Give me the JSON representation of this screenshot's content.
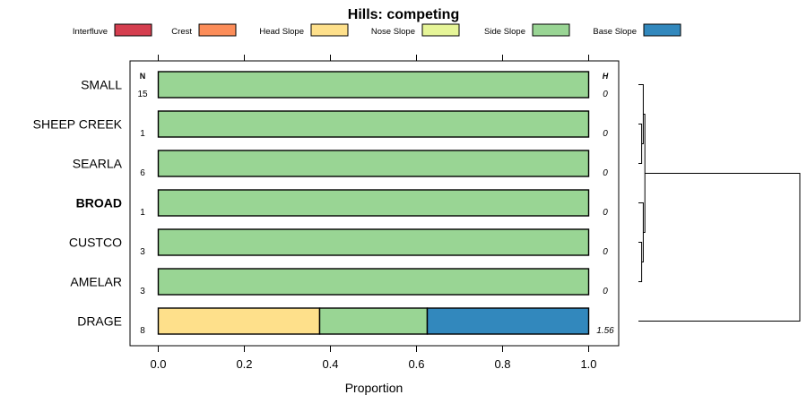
{
  "chart_data": {
    "type": "stacked-bar-horizontal",
    "title": "Hills: competing",
    "xlabel": "Proportion",
    "xlim": [
      -0.05,
      1.05
    ],
    "xticks": [
      0.0,
      0.2,
      0.4,
      0.6,
      0.8,
      1.0
    ],
    "xtick_labels": [
      "0.0",
      "0.2",
      "0.4",
      "0.6",
      "0.8",
      "1.0"
    ],
    "n_header": "N",
    "h_header": "H",
    "legend": [
      {
        "name": "Interfluve",
        "color": "#d53e4f"
      },
      {
        "name": "Crest",
        "color": "#fc8d59"
      },
      {
        "name": "Head Slope",
        "color": "#fee08b"
      },
      {
        "name": "Nose Slope",
        "color": "#e6f598"
      },
      {
        "name": "Side Slope",
        "color": "#99d594"
      },
      {
        "name": "Base Slope",
        "color": "#3288bd"
      }
    ],
    "rows": [
      {
        "label": "SMALL",
        "bold": false,
        "n": "15",
        "h": "0",
        "segments": [
          {
            "class": "Side Slope",
            "value": 1.0
          }
        ]
      },
      {
        "label": "SHEEP CREEK",
        "bold": false,
        "n": "1",
        "h": "0",
        "segments": [
          {
            "class": "Side Slope",
            "value": 1.0
          }
        ]
      },
      {
        "label": "SEARLA",
        "bold": false,
        "n": "6",
        "h": "0",
        "segments": [
          {
            "class": "Side Slope",
            "value": 1.0
          }
        ]
      },
      {
        "label": "BROAD",
        "bold": true,
        "n": "1",
        "h": "0",
        "segments": [
          {
            "class": "Side Slope",
            "value": 1.0
          }
        ]
      },
      {
        "label": "CUSTCO",
        "bold": false,
        "n": "3",
        "h": "0",
        "segments": [
          {
            "class": "Side Slope",
            "value": 1.0
          }
        ]
      },
      {
        "label": "AMELAR",
        "bold": false,
        "n": "3",
        "h": "0",
        "segments": [
          {
            "class": "Side Slope",
            "value": 1.0
          }
        ]
      },
      {
        "label": "DRAGE",
        "bold": false,
        "n": "8",
        "h": "1.56",
        "segments": [
          {
            "class": "Head Slope",
            "value": 0.375
          },
          {
            "class": "Side Slope",
            "value": 0.25
          },
          {
            "class": "Base Slope",
            "value": 0.375
          }
        ]
      }
    ],
    "dendrogram": {
      "type": "hierarchical-clustering",
      "merges": [
        {
          "left": "SHEEP CREEK",
          "right": "SEARLA",
          "height": 0.02
        },
        {
          "left": "SMALL",
          "right": "SHEEP CREEK+SEARLA",
          "height": 0.03
        },
        {
          "left": "CUSTCO",
          "right": "AMELAR",
          "height": 0.02
        },
        {
          "left": "BROAD",
          "right": "CUSTCO+AMELAR",
          "height": 0.03
        },
        {
          "left": "SMALL+SHEEP CREEK+SEARLA",
          "right": "BROAD+CUSTCO+AMELAR",
          "height": 0.04
        },
        {
          "left": "SMALL..AMELAR",
          "right": "DRAGE",
          "height": 1.0
        }
      ]
    }
  }
}
